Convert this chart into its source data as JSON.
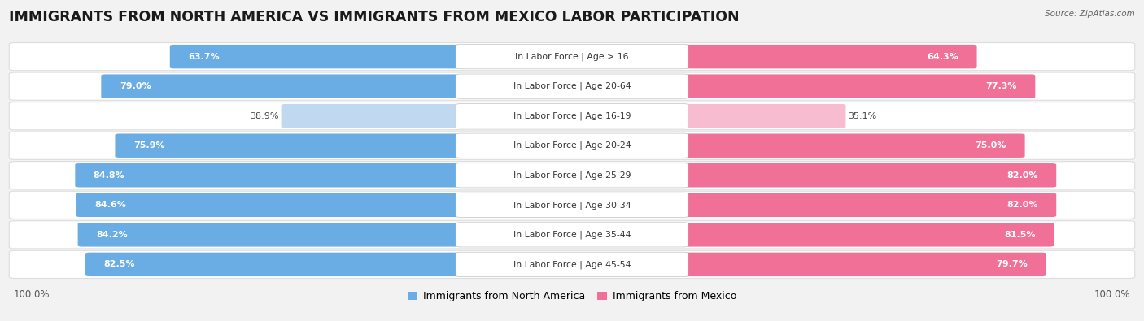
{
  "title": "IMMIGRANTS FROM NORTH AMERICA VS IMMIGRANTS FROM MEXICO LABOR PARTICIPATION",
  "source": "Source: ZipAtlas.com",
  "categories": [
    "In Labor Force | Age > 16",
    "In Labor Force | Age 20-64",
    "In Labor Force | Age 16-19",
    "In Labor Force | Age 20-24",
    "In Labor Force | Age 25-29",
    "In Labor Force | Age 30-34",
    "In Labor Force | Age 35-44",
    "In Labor Force | Age 45-54"
  ],
  "north_america_values": [
    63.7,
    79.0,
    38.9,
    75.9,
    84.8,
    84.6,
    84.2,
    82.5
  ],
  "mexico_values": [
    64.3,
    77.3,
    35.1,
    75.0,
    82.0,
    82.0,
    81.5,
    79.7
  ],
  "north_america_color": "#6aade4",
  "mexico_color": "#f07098",
  "north_america_light_color": "#c0d8f0",
  "mexico_light_color": "#f8bcd0",
  "bg_color": "#f2f2f2",
  "row_bg_color": "#ffffff",
  "row_alt_color": "#f8f8f8",
  "max_value": 100.0,
  "legend_label_na": "Immigrants from North America",
  "legend_label_mx": "Immigrants from Mexico",
  "title_fontsize": 12.5,
  "value_fontsize": 8.0,
  "cat_fontsize": 7.8,
  "bottom_label": "100.0%"
}
